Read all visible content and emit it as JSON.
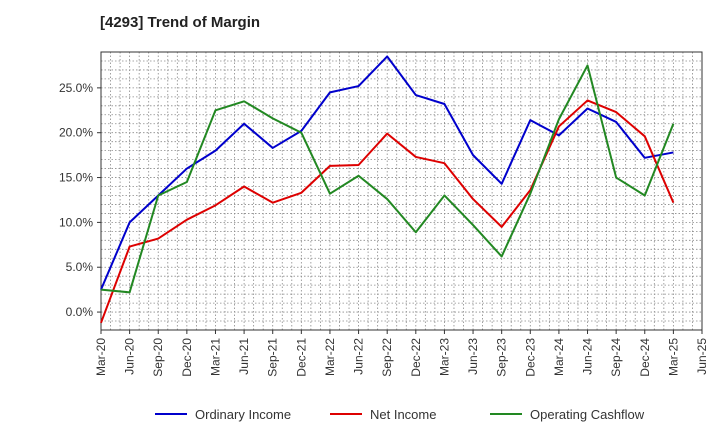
{
  "chart_data": {
    "type": "line",
    "title": "[4293]  Trend of Margin",
    "x": [
      "Mar-20",
      "Jun-20",
      "Sep-20",
      "Dec-20",
      "Mar-21",
      "Jun-21",
      "Sep-21",
      "Dec-21",
      "Mar-22",
      "Jun-22",
      "Sep-22",
      "Dec-22",
      "Mar-23",
      "Jun-23",
      "Sep-23",
      "Dec-23",
      "Mar-24",
      "Jun-24",
      "Sep-24",
      "Dec-24",
      "Mar-25",
      "Jun-25"
    ],
    "ylim": [
      -2.0,
      29.0
    ],
    "yticks": [
      0.0,
      5.0,
      10.0,
      15.0,
      20.0,
      25.0
    ],
    "ytick_labels": [
      "0.0%",
      "5.0%",
      "10.0%",
      "15.0%",
      "20.0%",
      "25.0%"
    ],
    "grid": true,
    "legend_position": "bottom",
    "series": [
      {
        "name": "Ordinary Income",
        "color": "#0000cc",
        "values": [
          2.5,
          10.0,
          13.0,
          16.0,
          18.0,
          21.0,
          18.3,
          20.2,
          24.5,
          25.2,
          28.5,
          24.2,
          23.2,
          17.5,
          14.3,
          21.4,
          19.7,
          22.7,
          21.2,
          17.2,
          17.8,
          null
        ]
      },
      {
        "name": "Net Income",
        "color": "#dd0000",
        "values": [
          -1.2,
          7.3,
          8.2,
          10.3,
          11.9,
          14.0,
          12.2,
          13.3,
          16.3,
          16.4,
          19.9,
          17.3,
          16.6,
          12.6,
          9.5,
          13.6,
          20.7,
          23.6,
          22.3,
          19.6,
          12.2,
          null
        ]
      },
      {
        "name": "Operating Cashflow",
        "color": "#228822",
        "values": [
          2.5,
          2.2,
          13.0,
          14.5,
          22.5,
          23.5,
          21.6,
          20.0,
          13.2,
          15.2,
          12.6,
          8.9,
          13.0,
          9.7,
          6.2,
          13.2,
          21.5,
          27.5,
          15.0,
          13.0,
          21.0,
          null
        ]
      }
    ]
  }
}
